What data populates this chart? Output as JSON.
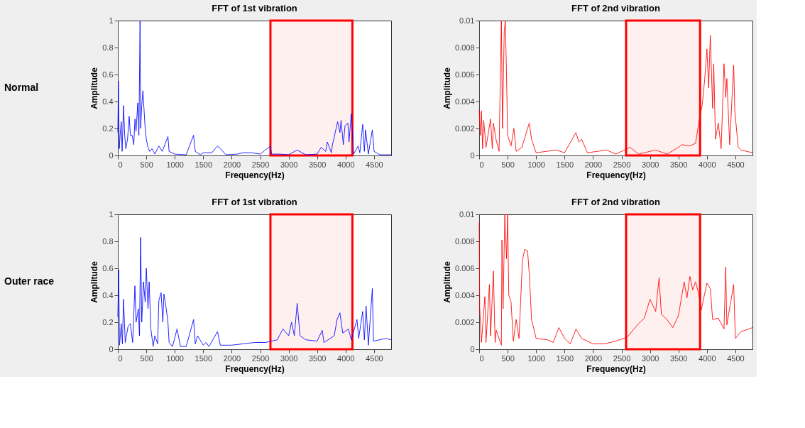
{
  "chart_data": [
    {
      "type": "line",
      "title": "FFT of 1st vibration",
      "xlabel": "Frequency(Hz)",
      "ylabel": "Amplitude",
      "annotations": [
        "Normal"
      ],
      "xlim": [
        0,
        4800
      ],
      "xticks": [
        0,
        500,
        1000,
        1500,
        2000,
        2500,
        3000,
        3500,
        4000,
        4500
      ],
      "ylim": [
        0,
        1
      ],
      "yticks": [
        0,
        0.2,
        0.4,
        0.6,
        0.8,
        1
      ],
      "bands": [
        {
          "axis": "x",
          "from": 2680,
          "to": 4120,
          "color": "#ff0000"
        }
      ],
      "series": [
        {
          "color": "#0000ff",
          "x": [
            0,
            10,
            25,
            40,
            60,
            75,
            100,
            120,
            140,
            170,
            200,
            220,
            250,
            280,
            300,
            320,
            350,
            370,
            390,
            400,
            420,
            440,
            460,
            480,
            500,
            530,
            560,
            600,
            650,
            720,
            780,
            880,
            900,
            1000,
            1200,
            1330,
            1360,
            1450,
            1500,
            1650,
            1750,
            1800,
            1900,
            2100,
            2200,
            2350,
            2500,
            2680,
            2700,
            2850,
            3000,
            3150,
            3300,
            3500,
            3570,
            3650,
            3680,
            3750,
            3770,
            3860,
            3900,
            3920,
            3960,
            3990,
            4040,
            4060,
            4100,
            4140,
            4220,
            4250,
            4300,
            4330,
            4350,
            4400,
            4470,
            4500,
            4600,
            4800
          ],
          "values": [
            0.17,
            0.55,
            0.05,
            0.15,
            0.25,
            0.03,
            0.37,
            0.15,
            0.05,
            0.12,
            0.29,
            0.15,
            0.15,
            0.08,
            0.27,
            0.18,
            0.39,
            0.15,
            1.0,
            0.2,
            0.37,
            0.48,
            0.34,
            0.2,
            0.12,
            0.06,
            0.03,
            0.05,
            0.01,
            0.07,
            0.03,
            0.14,
            0.03,
            0.01,
            0.005,
            0.15,
            0.03,
            0.005,
            0.02,
            0.02,
            0.07,
            0.05,
            0.005,
            0.01,
            0.02,
            0.02,
            0.01,
            0.07,
            0.01,
            0.01,
            0.005,
            0.04,
            0.005,
            0.01,
            0.06,
            0.03,
            0.1,
            0.02,
            0.08,
            0.25,
            0.17,
            0.26,
            0.08,
            0.22,
            0.24,
            0.1,
            0.31,
            0.01,
            0.07,
            0.02,
            0.23,
            0.03,
            0.19,
            0.01,
            0.19,
            0.03,
            0.005,
            0.005
          ]
        }
      ]
    },
    {
      "type": "line",
      "title": "FFT of 2nd vibration",
      "xlabel": "Frequency(Hz)",
      "ylabel": "Amplitude",
      "xlim": [
        0,
        4800
      ],
      "xticks": [
        0,
        500,
        1000,
        1500,
        2000,
        2500,
        3000,
        3500,
        4000,
        4500
      ],
      "ylim": [
        0,
        0.01
      ],
      "yticks": [
        0,
        0.002,
        0.004,
        0.006,
        0.008,
        0.01
      ],
      "bands": [
        {
          "axis": "x",
          "from": 2580,
          "to": 3880,
          "color": "#ff0000"
        }
      ],
      "series": [
        {
          "color": "#ff0000",
          "x": [
            0,
            20,
            40,
            60,
            80,
            120,
            200,
            230,
            250,
            300,
            350,
            390,
            410,
            440,
            460,
            480,
            500,
            560,
            610,
            650,
            750,
            880,
            920,
            1000,
            1350,
            1500,
            1700,
            1750,
            1800,
            1900,
            2240,
            2400,
            2650,
            2800,
            3100,
            3300,
            3500,
            3560,
            3700,
            3800,
            3880,
            3920,
            3960,
            4000,
            4030,
            4060,
            4100,
            4120,
            4150,
            4200,
            4250,
            4300,
            4330,
            4350,
            4400,
            4470,
            4490,
            4550,
            4600,
            4800
          ],
          "values": [
            0.0034,
            0.0015,
            0.0033,
            0.0005,
            0.0026,
            0.0006,
            0.0027,
            0.0005,
            0.0024,
            0.0011,
            0.0003,
            0.01,
            0.002,
            0.0092,
            0.01,
            0.006,
            0.0015,
            0.0007,
            0.002,
            0.0003,
            0.0006,
            0.0024,
            0.0012,
            0.0002,
            0.0004,
            0.0002,
            0.0017,
            0.001,
            0.0012,
            0.0002,
            0.0004,
            0.0001,
            0.0006,
            0.0001,
            0.0004,
            0.0001,
            0.0006,
            0.0008,
            0.0007,
            0.0009,
            0.003,
            0.0038,
            0.0056,
            0.0079,
            0.005,
            0.0089,
            0.0035,
            0.0068,
            0.0012,
            0.0024,
            0.0005,
            0.0068,
            0.0043,
            0.0057,
            0.0008,
            0.0067,
            0.0033,
            0.0006,
            0.0004,
            0.0002
          ]
        }
      ]
    },
    {
      "type": "line",
      "title": "FFT of 1st vibration",
      "xlabel": "Frequency(Hz)",
      "ylabel": "Amplitude",
      "annotations": [
        "Outer race"
      ],
      "xlim": [
        0,
        4800
      ],
      "xticks": [
        0,
        500,
        1000,
        1500,
        2000,
        2500,
        3000,
        3500,
        4000,
        4500
      ],
      "ylim": [
        0,
        1
      ],
      "yticks": [
        0,
        0.2,
        0.4,
        0.6,
        0.8,
        1
      ],
      "bands": [
        {
          "axis": "x",
          "from": 2680,
          "to": 4120,
          "color": "#ff0000"
        }
      ],
      "series": [
        {
          "color": "#0000ff",
          "x": [
            0,
            15,
            30,
            60,
            80,
            100,
            130,
            180,
            220,
            260,
            300,
            320,
            360,
            380,
            400,
            420,
            450,
            480,
            500,
            530,
            550,
            580,
            620,
            650,
            700,
            720,
            760,
            790,
            810,
            850,
            880,
            900,
            960,
            1040,
            1100,
            1200,
            1330,
            1360,
            1400,
            1500,
            1550,
            1600,
            1750,
            1800,
            2000,
            2200,
            2400,
            2600,
            2800,
            2900,
            3000,
            3050,
            3100,
            3150,
            3200,
            3300,
            3500,
            3590,
            3620,
            3800,
            3850,
            3900,
            3950,
            4050,
            4100,
            4200,
            4230,
            4300,
            4330,
            4360,
            4400,
            4470,
            4490,
            4600,
            4700,
            4800
          ],
          "values": [
            0.24,
            0.59,
            0.03,
            0.19,
            0.04,
            0.37,
            0.05,
            0.17,
            0.19,
            0.05,
            0.47,
            0.2,
            0.3,
            0.1,
            0.83,
            0.2,
            0.5,
            0.35,
            0.6,
            0.3,
            0.5,
            0.15,
            0.02,
            0.1,
            0.04,
            0.36,
            0.42,
            0.2,
            0.41,
            0.3,
            0.2,
            0.05,
            0.02,
            0.15,
            0.02,
            0.02,
            0.22,
            0.04,
            0.1,
            0.03,
            0.05,
            0.02,
            0.13,
            0.03,
            0.03,
            0.04,
            0.05,
            0.05,
            0.07,
            0.15,
            0.1,
            0.2,
            0.1,
            0.34,
            0.1,
            0.07,
            0.06,
            0.14,
            0.05,
            0.1,
            0.22,
            0.27,
            0.12,
            0.15,
            0.07,
            0.22,
            0.08,
            0.28,
            0.07,
            0.32,
            0.03,
            0.45,
            0.06,
            0.07,
            0.08,
            0.07
          ]
        }
      ]
    },
    {
      "type": "line",
      "title": "FFT of 2nd vibration",
      "xlabel": "Frequency(Hz)",
      "ylabel": "Amplitude",
      "xlim": [
        0,
        4800
      ],
      "xticks": [
        0,
        500,
        1000,
        1500,
        2000,
        2500,
        3000,
        3500,
        4000,
        4500
      ],
      "ylim": [
        0,
        0.01
      ],
      "yticks": [
        0,
        0.002,
        0.004,
        0.006,
        0.008,
        0.01
      ],
      "bands": [
        {
          "axis": "x",
          "from": 2580,
          "to": 3880,
          "color": "#ff0000"
        }
      ],
      "series": [
        {
          "color": "#ff0000",
          "x": [
            0,
            10,
            40,
            100,
            120,
            180,
            200,
            250,
            280,
            300,
            390,
            400,
            420,
            450,
            480,
            500,
            520,
            560,
            600,
            650,
            700,
            760,
            800,
            850,
            880,
            920,
            1000,
            1200,
            1300,
            1400,
            1500,
            1600,
            1700,
            1800,
            2000,
            2200,
            2400,
            2600,
            2800,
            2900,
            3000,
            3100,
            3160,
            3200,
            3300,
            3400,
            3500,
            3600,
            3650,
            3700,
            3750,
            3800,
            3850,
            3900,
            4000,
            4060,
            4100,
            4200,
            4300,
            4330,
            4350,
            4470,
            4500,
            4600,
            4800
          ],
          "values": [
            0.0094,
            0.003,
            0.0005,
            0.0039,
            0.0005,
            0.0048,
            0.001,
            0.0058,
            0.0005,
            0.0014,
            0.0003,
            0.0081,
            0.003,
            0.01,
            0.0067,
            0.01,
            0.004,
            0.0035,
            0.0006,
            0.0022,
            0.0008,
            0.0066,
            0.0074,
            0.0073,
            0.0056,
            0.0022,
            0.0008,
            0.0007,
            0.0005,
            0.0016,
            0.0008,
            0.0004,
            0.0015,
            0.0008,
            0.0004,
            0.0004,
            0.0006,
            0.0009,
            0.0019,
            0.0023,
            0.0037,
            0.0028,
            0.0053,
            0.0026,
            0.0022,
            0.0016,
            0.0025,
            0.005,
            0.0038,
            0.0054,
            0.0044,
            0.005,
            0.0042,
            0.0029,
            0.0049,
            0.0045,
            0.0022,
            0.0023,
            0.0015,
            0.0061,
            0.0018,
            0.0048,
            0.0008,
            0.0013,
            0.0016
          ]
        }
      ]
    }
  ]
}
